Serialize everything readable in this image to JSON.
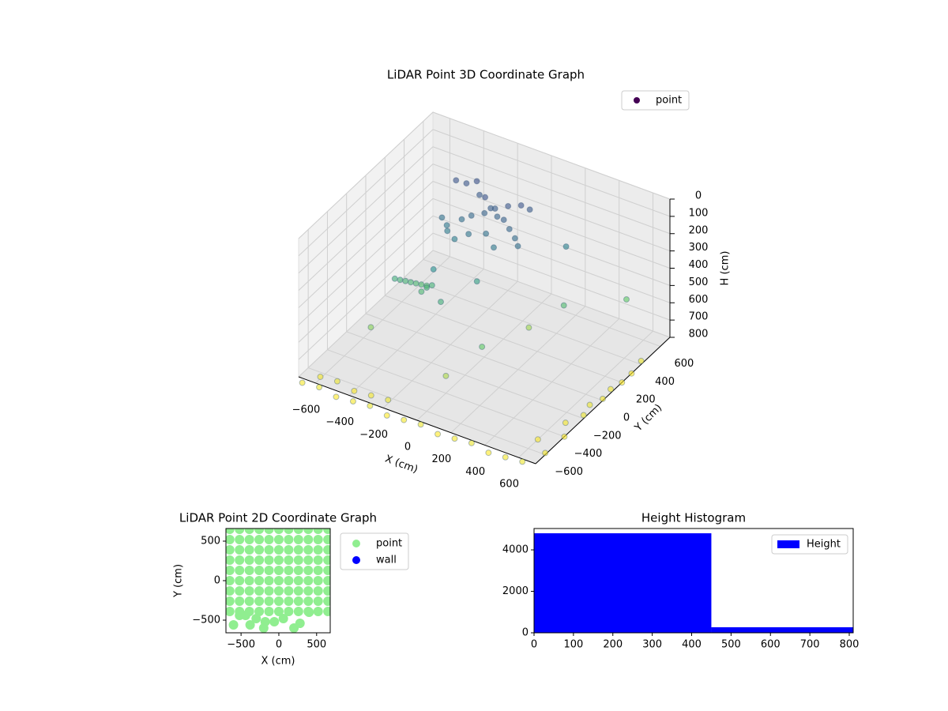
{
  "chart_data": [
    {
      "type": "scatter3d",
      "title": "LiDAR Point 3D Coordinate Graph",
      "x_label": "X (cm)",
      "y_label": "Y (cm)",
      "z_label": "H (cm)",
      "xlim": [
        -700,
        700
      ],
      "ylim": [
        -700,
        700
      ],
      "zlim": [
        0,
        800
      ],
      "invert_z": true,
      "grid": true,
      "colormap": "viridis",
      "legend": "upper right",
      "xticks": [
        {
          "value": -600,
          "label": "−600"
        },
        {
          "value": -400,
          "label": "−400"
        },
        {
          "value": -200,
          "label": "−200"
        },
        0,
        200,
        400,
        600
      ],
      "yticks": [
        {
          "value": -600,
          "label": "−600"
        },
        {
          "value": -400,
          "label": "−400"
        },
        {
          "value": -200,
          "label": "−200"
        },
        0,
        200,
        400,
        600
      ],
      "zticks": [
        0,
        100,
        200,
        300,
        400,
        500,
        600,
        700,
        800
      ],
      "series": [
        {
          "name": "point",
          "color": "#440154",
          "x": [
            -450,
            -400,
            -350,
            -300,
            -250,
            -200,
            -150,
            -100,
            -50,
            0,
            -420,
            -380,
            -320,
            -280,
            -220,
            -180,
            -120,
            -60,
            -20,
            -360,
            -300,
            -240,
            -160,
            -80,
            40,
            -500,
            -480,
            -460,
            -440,
            -420,
            -400,
            -380,
            -360,
            -340,
            -320,
            -300,
            -100,
            100,
            200,
            -500,
            0,
            300,
            500,
            -200,
            150,
            -650,
            -550,
            -450,
            -350,
            -250,
            -150,
            -50,
            50,
            150,
            250,
            350,
            450,
            550,
            650,
            700,
            700,
            700,
            700,
            700,
            700,
            -600,
            -500,
            -400,
            -300,
            -200,
            600,
            650,
            680,
            690,
            700
          ],
          "y": [
            500,
            520,
            540,
            480,
            450,
            420,
            400,
            380,
            350,
            320,
            300,
            280,
            330,
            360,
            390,
            430,
            460,
            490,
            510,
            250,
            220,
            260,
            300,
            240,
            280,
            -50,
            -30,
            -10,
            10,
            30,
            50,
            70,
            -20,
            0,
            20,
            0,
            100,
            -200,
            500,
            -300,
            -400,
            300,
            600,
            -100,
            200,
            -750,
            -750,
            -750,
            -750,
            -750,
            -750,
            -750,
            -750,
            -750,
            -750,
            -750,
            -750,
            -750,
            -750,
            -600,
            -400,
            -200,
            0,
            200,
            400,
            -650,
            -650,
            -650,
            -650,
            -650,
            -500,
            -300,
            -100,
            100,
            300
          ],
          "z": [
            200,
            210,
            190,
            220,
            200,
            230,
            250,
            240,
            260,
            280,
            300,
            320,
            290,
            270,
            250,
            230,
            210,
            200,
            220,
            330,
            340,
            310,
            300,
            320,
            290,
            500,
            510,
            520,
            530,
            540,
            550,
            560,
            540,
            520,
            510,
            400,
            450,
            600,
            350,
            650,
            700,
            550,
            600,
            500,
            680,
            790,
            780,
            800,
            790,
            780,
            800,
            790,
            780,
            800,
            790,
            780,
            800,
            790,
            780,
            790,
            800,
            780,
            790,
            800,
            780,
            790,
            780,
            800,
            790,
            780,
            800,
            790,
            780,
            790,
            800
          ]
        }
      ]
    },
    {
      "type": "scatter",
      "title": "LiDAR Point 2D Coordinate Graph",
      "x_label": "X (cm)",
      "y_label": "Y (cm)",
      "xlim": [
        -700,
        680
      ],
      "ylim": [
        -660,
        660
      ],
      "legend": "outside right",
      "xticks": [
        {
          "value": -500,
          "label": "−500"
        },
        0,
        500
      ],
      "yticks": [
        {
          "value": -500,
          "label": "−500"
        },
        0,
        500
      ],
      "series": [
        {
          "name": "point",
          "color": "#90ee90",
          "x": [
            -650,
            -520,
            -390,
            -260,
            -130,
            0,
            130,
            260,
            390,
            520,
            650,
            -650,
            -520,
            -390,
            -260,
            -130,
            0,
            130,
            260,
            390,
            520,
            650,
            -650,
            -520,
            -390,
            -260,
            -130,
            0,
            130,
            260,
            390,
            520,
            650,
            -650,
            -520,
            -390,
            -260,
            -130,
            0,
            130,
            260,
            390,
            520,
            650,
            -650,
            -520,
            -390,
            -260,
            -130,
            0,
            130,
            260,
            390,
            520,
            650,
            -650,
            -520,
            -390,
            -260,
            -130,
            0,
            130,
            260,
            390,
            520,
            650,
            -650,
            -520,
            -390,
            -260,
            -130,
            0,
            130,
            260,
            390,
            520,
            650,
            -650,
            -520,
            -390,
            -260,
            -130,
            0,
            130,
            260,
            390,
            520,
            650,
            -650,
            -520,
            -390,
            -260,
            -130,
            0,
            130,
            260,
            390,
            520,
            650,
            -600,
            -520,
            -440,
            -380,
            -300,
            -180,
            -60,
            60,
            200,
            280,
            400,
            -200
          ],
          "y": [
            650,
            650,
            650,
            650,
            650,
            650,
            650,
            650,
            650,
            650,
            650,
            520,
            520,
            520,
            520,
            520,
            520,
            520,
            520,
            520,
            520,
            520,
            390,
            390,
            390,
            390,
            390,
            390,
            390,
            390,
            390,
            390,
            390,
            260,
            260,
            260,
            260,
            260,
            260,
            260,
            260,
            260,
            260,
            260,
            130,
            130,
            130,
            130,
            130,
            130,
            130,
            130,
            130,
            130,
            130,
            0,
            0,
            0,
            0,
            0,
            0,
            0,
            0,
            0,
            0,
            0,
            -130,
            -130,
            -130,
            -130,
            -130,
            -130,
            -130,
            -130,
            -130,
            -130,
            -130,
            -260,
            -260,
            -260,
            -260,
            -260,
            -260,
            -260,
            -260,
            -260,
            -260,
            -260,
            -390,
            -390,
            -390,
            -390,
            -390,
            -390,
            -390,
            -390,
            -390,
            -390,
            -390,
            -560,
            -440,
            -440,
            -560,
            -480,
            -520,
            -520,
            -480,
            -600,
            -540,
            -400,
            -600
          ]
        },
        {
          "name": "wall",
          "color": "#0000ff",
          "x": [],
          "y": []
        }
      ]
    },
    {
      "type": "histogram",
      "title": "Height Histogram",
      "name": "Height",
      "color": "#0000ff",
      "legend": "upper right",
      "bins": [
        0,
        450,
        810
      ],
      "counts": [
        4800,
        267
      ],
      "xlim": [
        0,
        810
      ],
      "ylim": [
        0,
        5030
      ],
      "xticks": [
        0,
        100,
        200,
        300,
        400,
        500,
        600,
        700,
        800
      ],
      "yticks": [
        0,
        2000,
        4000
      ]
    }
  ]
}
